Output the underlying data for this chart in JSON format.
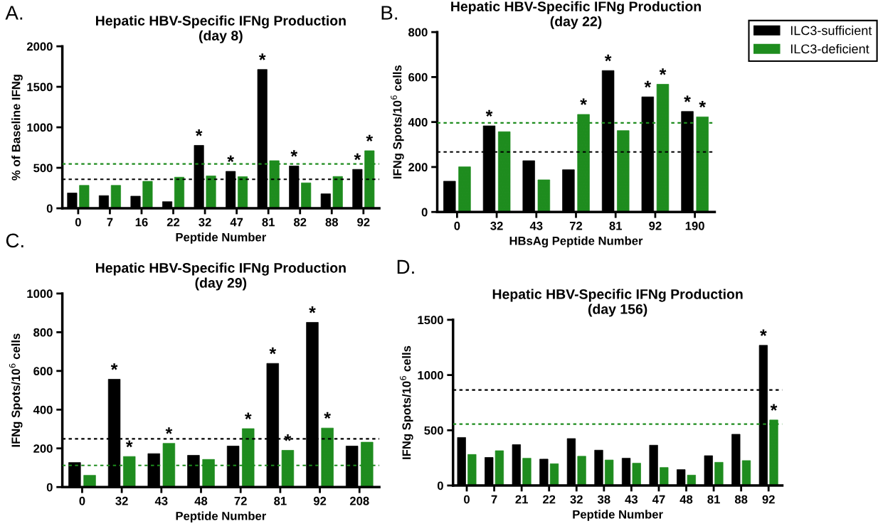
{
  "chart_data": [
    {
      "type": "bar",
      "title": "Hepatic HBV-Specific IFNg Production\n(day 8)",
      "xlabel": "Peptide Number",
      "ylabel": "% of Baseline IFNg",
      "categories": [
        "0",
        "7",
        "16",
        "22",
        "32",
        "47",
        "81",
        "82",
        "88",
        "92"
      ],
      "series": [
        {
          "color": "#000000",
          "values": [
            189,
            157,
            150,
            82,
            777,
            456,
            1714,
            522,
            179,
            481
          ]
        },
        {
          "color": "#1e8c1e",
          "values": [
            283,
            283,
            333,
            384,
            400,
            390,
            588,
            314,
            393,
            711
          ]
        }
      ],
      "ylim": [
        0,
        2000
      ],
      "yticks": [
        0,
        500,
        1000,
        1500,
        2000
      ],
      "ref_lines": [
        {
          "axis": "y",
          "value": 547,
          "color": "#1e8c1e",
          "line_style": "dotted"
        },
        {
          "axis": "y",
          "value": 358,
          "color": "#000000",
          "line_style": "dotted"
        }
      ],
      "annotations": [
        "A.",
        {
          "text": "*",
          "x": "32",
          "y": 777
        },
        {
          "text": "*",
          "x": "47",
          "y": 456
        },
        {
          "text": "*",
          "x": "81",
          "y": 1714
        },
        {
          "text": "*",
          "x": "82",
          "y": 522
        },
        {
          "text": "*",
          "x": "92",
          "y": 481
        },
        {
          "text": "*",
          "x": "92",
          "y": 711
        }
      ]
    },
    {
      "type": "bar",
      "title": "Hepatic HBV-Specific IFNg Production\n(day 22)",
      "xlabel": "HBsAg Peptide Number",
      "ylabel": "IFNg Spots/10$^{6}$ cells",
      "categories": [
        "0",
        "32",
        "43",
        "72",
        "81",
        "92",
        "190"
      ],
      "series": [
        {
          "name": "ILC3-sufficient",
          "color": "#000000",
          "values": [
            137,
            383,
            228,
            188,
            629,
            512,
            447
          ]
        },
        {
          "name": "ILC3-deficient",
          "color": "#1e8c1e",
          "values": [
            201,
            357,
            143,
            434,
            362,
            568,
            423
          ]
        }
      ],
      "ylim": [
        0,
        800
      ],
      "yticks": [
        0,
        200,
        400,
        600,
        800
      ],
      "legend": "top right",
      "ref_lines": [
        {
          "axis": "y",
          "value": 396,
          "color": "#1e8c1e",
          "line_style": "dotted"
        },
        {
          "axis": "y",
          "value": 267,
          "color": "#000000",
          "line_style": "dotted"
        }
      ],
      "annotations": [
        "B.",
        {
          "text": "*",
          "x": "32",
          "y": 383
        },
        {
          "text": "*",
          "x": "81",
          "y": 629
        },
        {
          "text": "*",
          "x": "92",
          "y": 512
        },
        {
          "text": "*",
          "x": "190",
          "y": 447
        },
        {
          "text": "*",
          "x": "72",
          "y": 434
        },
        {
          "text": "*",
          "x": "92",
          "y": 568
        },
        {
          "text": "*",
          "x": "190",
          "y": 423
        }
      ]
    },
    {
      "type": "bar",
      "title": "Hepatic HBV-Specific IFNg Production\n(day 29)",
      "xlabel": "Peptide Number",
      "ylabel": "IFNg Spots/10$^{6}$ cells",
      "categories": [
        "0",
        "32",
        "43",
        "48",
        "72",
        "81",
        "92",
        "208"
      ],
      "series": [
        {
          "color": "#000000",
          "values": [
            127,
            557,
            173,
            164,
            212,
            639,
            851,
            212
          ]
        },
        {
          "color": "#1e8c1e",
          "values": [
            61,
            158,
            226,
            143,
            302,
            190,
            305,
            232
          ]
        }
      ],
      "ylim": [
        0,
        1000
      ],
      "yticks": [
        0,
        200,
        400,
        600,
        800,
        1000
      ],
      "ref_lines": [
        {
          "axis": "y",
          "value": 249,
          "color": "#000000",
          "line_style": "dotted"
        },
        {
          "axis": "y",
          "value": 112,
          "color": "#1e8c1e",
          "line_style": "dotted"
        }
      ],
      "annotations": [
        "C.",
        {
          "text": "*",
          "x": "32",
          "y": 557
        },
        {
          "text": "*",
          "x": "81",
          "y": 639
        },
        {
          "text": "*",
          "x": "92",
          "y": 851
        },
        {
          "text": "*",
          "x": "32",
          "y": 158
        },
        {
          "text": "*",
          "x": "43",
          "y": 226
        },
        {
          "text": "*",
          "x": "72",
          "y": 302
        },
        {
          "text": "*",
          "x": "81",
          "y": 190
        },
        {
          "text": "*",
          "x": "92",
          "y": 305
        }
      ]
    },
    {
      "type": "bar",
      "title": "Hepatic HBV-Specific IFNg Production\n(day 156)",
      "xlabel": "Peptide Number",
      "ylabel": "IFNg Spots/10$^{6}$ cells",
      "categories": [
        "0",
        "7",
        "21",
        "22",
        "32",
        "38",
        "43",
        "47",
        "48",
        "81",
        "88",
        "92"
      ],
      "series": [
        {
          "color": "#000000",
          "values": [
            435,
            254,
            370,
            239,
            425,
            320,
            247,
            365,
            144,
            270,
            464,
            1269
          ]
        },
        {
          "color": "#1e8c1e",
          "values": [
            281,
            315,
            247,
            197,
            265,
            231,
            202,
            163,
            94,
            210,
            226,
            593
          ]
        }
      ],
      "ylim": [
        0,
        1500
      ],
      "yticks": [
        0,
        500,
        1000,
        1500
      ],
      "ref_lines": [
        {
          "axis": "y",
          "value": 865,
          "color": "#000000",
          "line_style": "dotted"
        },
        {
          "axis": "y",
          "value": 556,
          "color": "#1e8c1e",
          "line_style": "dotted"
        }
      ],
      "annotations": [
        "D.",
        {
          "text": "*",
          "x": "92",
          "y": 1269
        },
        {
          "text": "*",
          "x": "92",
          "y": 593
        }
      ]
    }
  ]
}
